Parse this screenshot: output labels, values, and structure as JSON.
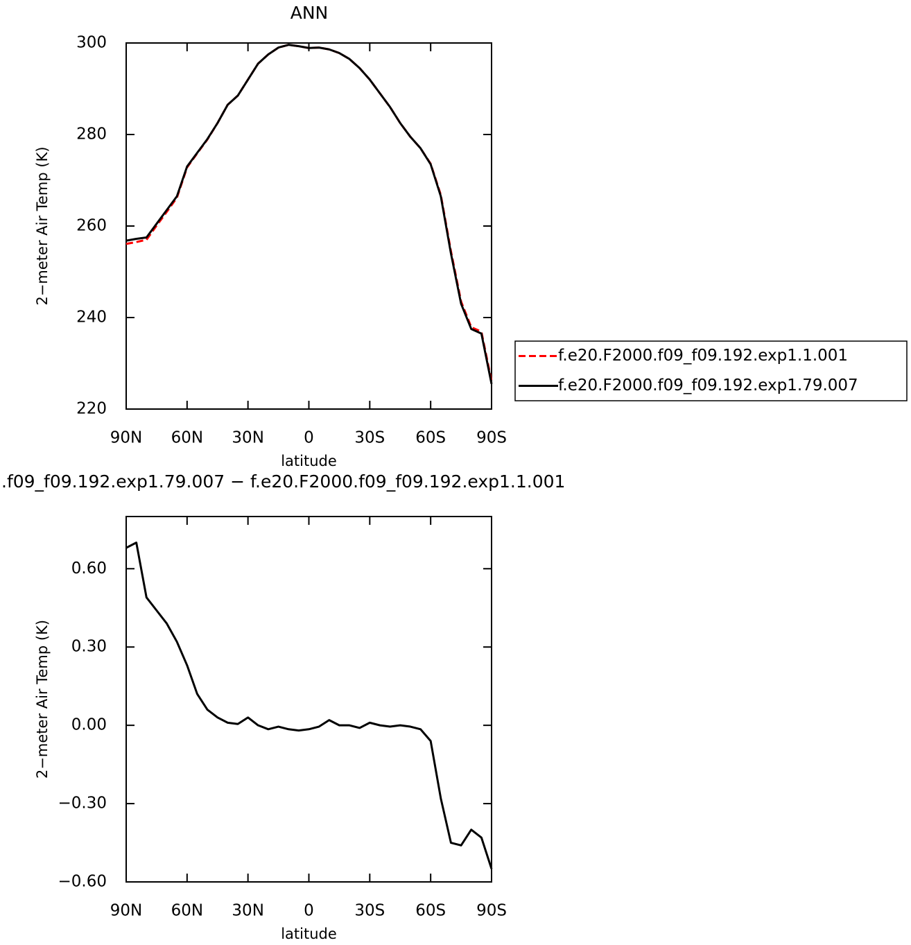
{
  "chart_data": [
    {
      "type": "line",
      "title": "ANN",
      "x_label": "latitude",
      "y_label": "2−meter Air Temp (K)",
      "x": [
        90,
        85,
        80,
        75,
        70,
        65,
        60,
        55,
        50,
        45,
        40,
        35,
        30,
        25,
        20,
        15,
        10,
        5,
        0,
        -5,
        -10,
        -15,
        -20,
        -25,
        -30,
        -35,
        -40,
        -45,
        -50,
        -55,
        -60,
        -65,
        -70,
        -75,
        -80,
        -85,
        -90
      ],
      "series": [
        {
          "name": "f.e20.F2000.f09_f09.192.exp1.1.001",
          "color": "#ff0000",
          "line_style": "dashed",
          "values": [
            256.1,
            256.5,
            257.0,
            260.1,
            263.1,
            266.2,
            272.8,
            275.9,
            278.9,
            282.5,
            286.5,
            288.5,
            292.0,
            295.5,
            297.5,
            299.0,
            299.6,
            299.3,
            298.9,
            299.0,
            298.6,
            297.8,
            296.5,
            294.5,
            292.0,
            289.0,
            286.0,
            282.5,
            279.5,
            277.0,
            273.6,
            266.8,
            254.5,
            243.5,
            237.9,
            236.9,
            226.1
          ]
        },
        {
          "name": "f.e20.F2000.f09_f09.192.exp1.79.007",
          "color": "#000000",
          "line_style": "solid",
          "values": [
            256.8,
            257.2,
            257.5,
            260.5,
            263.5,
            266.5,
            273.0,
            276.0,
            279.0,
            282.5,
            286.5,
            288.5,
            292.0,
            295.5,
            297.5,
            299.0,
            299.6,
            299.3,
            298.9,
            299.0,
            298.6,
            297.8,
            296.5,
            294.5,
            292.0,
            289.0,
            286.0,
            282.5,
            279.5,
            277.0,
            273.5,
            266.5,
            254.0,
            243.0,
            237.5,
            236.5,
            225.5
          ]
        }
      ],
      "xlim": [
        90,
        -90
      ],
      "xticks": [
        {
          "value": 90,
          "label": "90N"
        },
        {
          "value": 60,
          "label": "60N"
        },
        {
          "value": 30,
          "label": "30N"
        },
        0,
        {
          "value": -30,
          "label": "30S"
        },
        {
          "value": -60,
          "label": "60S"
        },
        {
          "value": -90,
          "label": "90S"
        }
      ],
      "ylim": [
        220,
        300
      ],
      "yticks": [
        220,
        240,
        260,
        280,
        300
      ],
      "legend": "right"
    },
    {
      "type": "line",
      "title": ".f09_f09.192.exp1.79.007 − f.e20.F2000.f09_f09.192.exp1.1.001",
      "x_label": "latitude",
      "y_label": "2−meter Air Temp (K)",
      "x": [
        90,
        85,
        80,
        75,
        70,
        65,
        60,
        55,
        50,
        45,
        40,
        35,
        30,
        25,
        20,
        15,
        10,
        5,
        0,
        -5,
        -10,
        -15,
        -20,
        -25,
        -30,
        -35,
        -40,
        -45,
        -50,
        -55,
        -60,
        -65,
        -70,
        -75,
        -80,
        -85,
        -90
      ],
      "series": [
        {
          "color": "#000000",
          "line_style": "solid",
          "values": [
            0.68,
            0.7,
            0.49,
            0.44,
            0.39,
            0.32,
            0.23,
            0.12,
            0.06,
            0.03,
            0.01,
            0.005,
            0.03,
            0.0,
            -0.015,
            -0.005,
            -0.015,
            -0.02,
            -0.015,
            -0.005,
            0.02,
            0.0,
            0.0,
            -0.01,
            0.01,
            0.0,
            -0.005,
            0.0,
            -0.005,
            -0.015,
            -0.06,
            -0.28,
            -0.45,
            -0.46,
            -0.4,
            -0.43,
            -0.55
          ]
        }
      ],
      "xlim": [
        90,
        -90
      ],
      "xticks": [
        {
          "value": 90,
          "label": "90N"
        },
        {
          "value": 60,
          "label": "60N"
        },
        {
          "value": 30,
          "label": "30N"
        },
        0,
        {
          "value": -30,
          "label": "30S"
        },
        {
          "value": -60,
          "label": "60S"
        },
        {
          "value": -90,
          "label": "90S"
        }
      ],
      "ylim": [
        -0.6,
        0.8
      ],
      "yticks": [
        {
          "value": -0.6,
          "label": "−0.60"
        },
        {
          "value": -0.3,
          "label": "−0.30"
        },
        {
          "value": 0,
          "label": "0.00"
        },
        {
          "value": 0.3,
          "label": "0.30"
        },
        {
          "value": 0.6,
          "label": "0.60"
        }
      ]
    }
  ]
}
